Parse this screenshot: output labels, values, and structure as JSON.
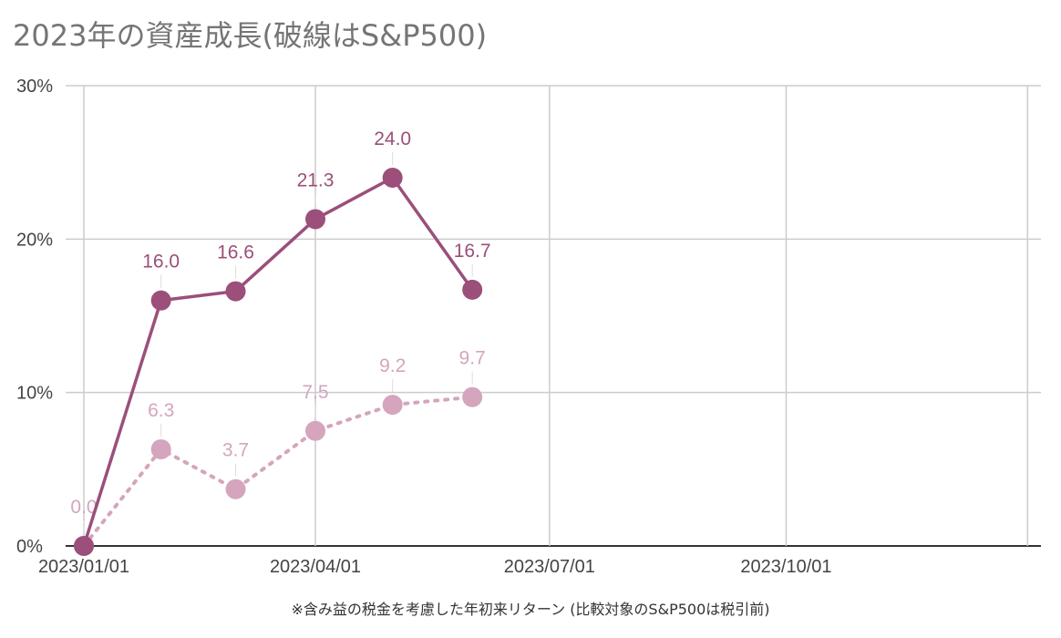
{
  "title": "2023年の資産成長(破線はS&P500)",
  "footnote": "※含み益の税金を考慮した年初来リターン (比較対象のS&P500は税引前)",
  "chart_data": {
    "type": "line",
    "title": "2023年の資産成長(破線はS&P500)",
    "xlabel": "",
    "ylabel": "",
    "x_ticks": [
      "2023/01/01",
      "2023/04/01",
      "2023/07/01",
      "2023/10/01"
    ],
    "y_ticks": [
      "0%",
      "10%",
      "20%",
      "30%"
    ],
    "xlim": [
      "2023/01/01",
      "2023/12/31"
    ],
    "ylim": [
      0,
      30
    ],
    "grid": true,
    "series": [
      {
        "style": "solid",
        "color": "#9b4f7a",
        "x": [
          "2023/01/01",
          "2023/01/31",
          "2023/03/01",
          "2023/04/01",
          "2023/05/01",
          "2023/06/01"
        ],
        "y": [
          0.0,
          16.0,
          16.6,
          21.3,
          24.0,
          16.7
        ],
        "labels": [
          "",
          "16.0",
          "16.6",
          "21.3",
          "24.0",
          "16.7"
        ]
      },
      {
        "style": "dotted",
        "color": "#d4a5bd",
        "x": [
          "2023/01/01",
          "2023/01/31",
          "2023/03/01",
          "2023/04/01",
          "2023/05/01",
          "2023/06/01"
        ],
        "y": [
          0.0,
          6.3,
          3.7,
          7.5,
          9.2,
          9.7
        ],
        "labels": [
          "0.0",
          "6.3",
          "3.7",
          "7.5",
          "9.2",
          "9.7"
        ]
      }
    ]
  }
}
